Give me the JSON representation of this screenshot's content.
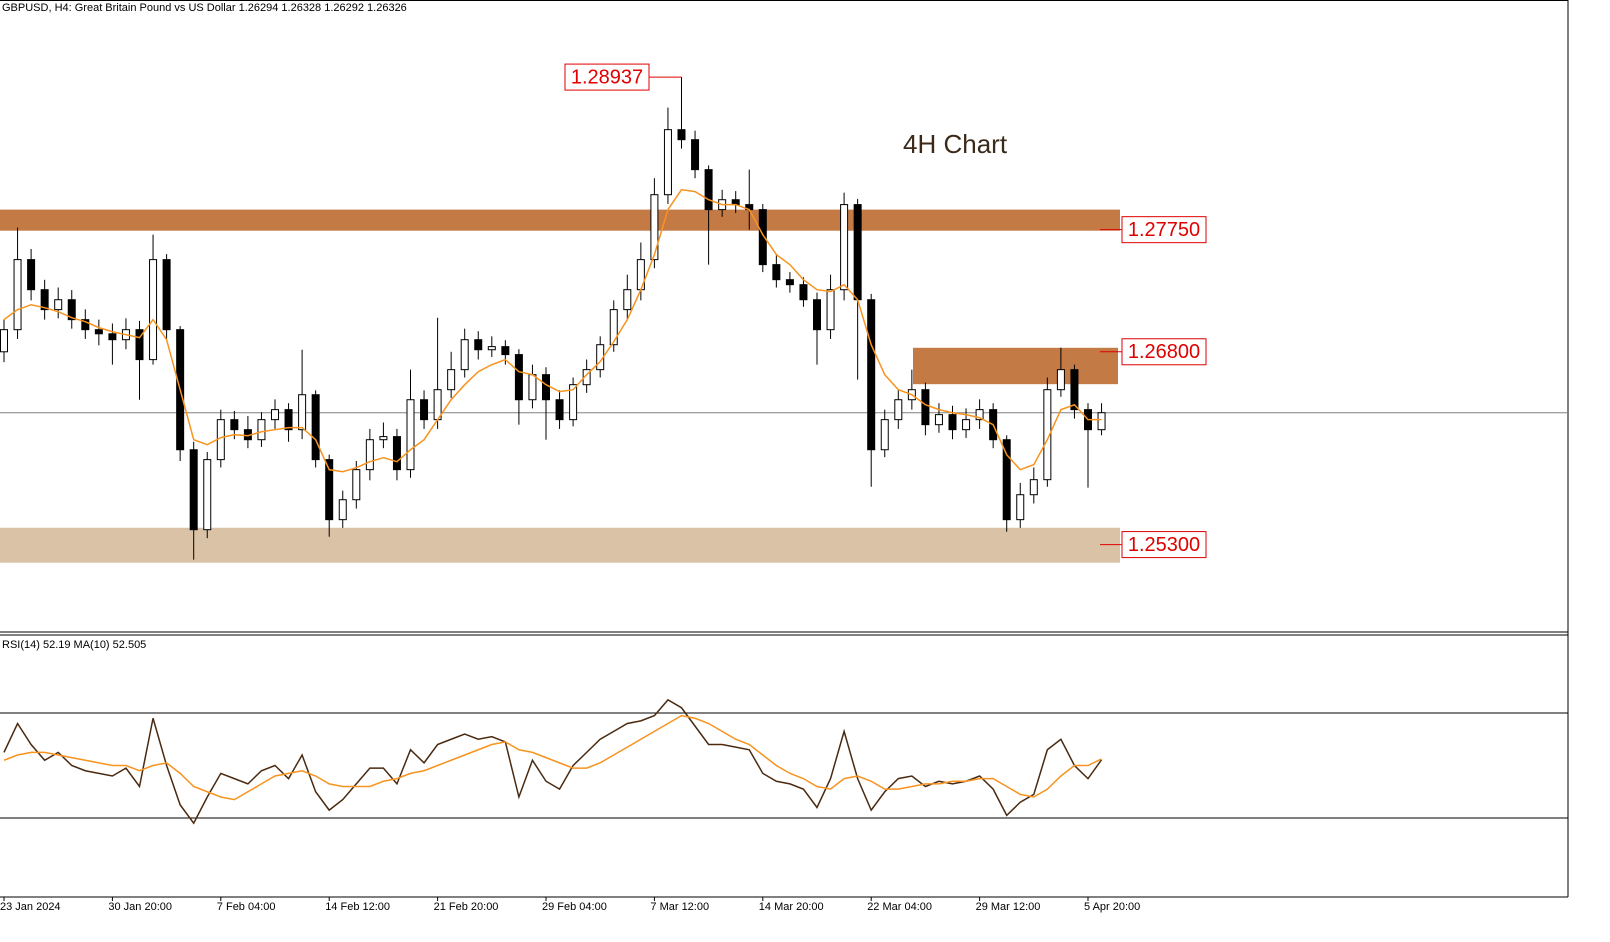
{
  "chart_data": {
    "type": "candlestick",
    "title": "GBPUSD, H4:  Great Britain Pound vs US Dollar  1.26294 1.26328 1.26292 1.26326",
    "annotation": "4H Chart",
    "categories": [
      "23 Jan 2024",
      null,
      null,
      null,
      null,
      null,
      null,
      null,
      "30 Jan 20:00",
      null,
      null,
      null,
      null,
      null,
      null,
      null,
      "7 Feb 04:00",
      null,
      null,
      null,
      null,
      null,
      null,
      null,
      "14 Feb 12:00",
      null,
      null,
      null,
      null,
      null,
      null,
      null,
      "21 Feb 20:00",
      null,
      null,
      null,
      null,
      null,
      null,
      null,
      "29 Feb 04:00",
      null,
      null,
      null,
      null,
      null,
      null,
      null,
      "7 Mar 12:00",
      null,
      null,
      null,
      null,
      null,
      null,
      null,
      "14 Mar 20:00",
      null,
      null,
      null,
      null,
      null,
      null,
      null,
      "22 Mar 04:00",
      null,
      null,
      null,
      null,
      null,
      null,
      null,
      "29 Mar 12:00",
      null,
      null,
      null,
      null,
      null,
      null,
      null,
      "5 Apr 20:00",
      null
    ],
    "open": [
      1.268,
      1.26972,
      1.27517,
      1.27283,
      1.27128,
      1.27205,
      1.2705,
      1.26972,
      1.2694,
      1.26894,
      1.26972,
      1.26739,
      1.27517,
      1.26972,
      1.26038,
      1.25416,
      1.25961,
      1.26272,
      1.26194,
      1.26116,
      1.26272,
      1.2635,
      1.26194,
      1.26466,
      1.25961,
      1.25494,
      1.25649,
      1.25883,
      1.26116,
      1.2614,
      1.25883,
      1.26427,
      1.26272,
      1.26505,
      1.26661,
      1.26894,
      1.26816,
      1.2684,
      1.26778,
      1.26427,
      1.26622,
      1.26427,
      1.26272,
      1.26544,
      1.26661,
      1.26855,
      1.27128,
      1.27283,
      1.27517,
      1.28022,
      1.28528,
      1.2845,
      1.28217,
      1.27906,
      1.27983,
      1.27945,
      1.27906,
      1.27478,
      1.27361,
      1.27322,
      1.27205,
      1.26972,
      1.27283,
      1.27945,
      1.27205,
      1.26038,
      1.26272,
      1.26427,
      1.26505,
      1.26233,
      1.26311,
      1.26194,
      1.26272,
      1.2635,
      1.26116,
      1.25494,
      1.25688,
      1.25805,
      1.26505,
      1.26661,
      1.2635,
      1.26194
    ],
    "high": [
      1.2705,
      1.27766,
      1.276,
      1.2736,
      1.273,
      1.2728,
      1.2713,
      1.2705,
      1.2702,
      1.2706,
      1.2704,
      1.27711,
      1.2756,
      1.27,
      1.261,
      1.2602,
      1.2635,
      1.2634,
      1.263,
      1.2633,
      1.2643,
      1.264,
      1.26816,
      1.265,
      1.26,
      1.2572,
      1.2595,
      1.262,
      1.2625,
      1.262,
      1.26661,
      1.265,
      1.27065,
      1.268,
      1.2698,
      1.2696,
      1.2692,
      1.2689,
      1.2682,
      1.267,
      1.2668,
      1.265,
      1.266,
      1.2674,
      1.2692,
      1.272,
      1.274,
      1.2765,
      1.2815,
      1.287,
      1.28937,
      1.2852,
      1.2825,
      1.2806,
      1.2805,
      1.28217,
      1.2795,
      1.2755,
      1.2742,
      1.2738,
      1.2726,
      1.274,
      1.28038,
      1.2799,
      1.2725,
      1.2635,
      1.265,
      1.26661,
      1.2656,
      1.264,
      1.2638,
      1.2636,
      1.2643,
      1.264,
      1.2615,
      1.2578,
      1.259,
      1.266,
      1.26832,
      1.267,
      1.264,
      1.264
    ],
    "low": [
      1.2672,
      1.269,
      1.272,
      1.2705,
      1.2706,
      1.2698,
      1.269,
      1.2685,
      1.267,
      1.2682,
      1.26427,
      1.267,
      1.269,
      1.2595,
      1.25183,
      1.2535,
      1.259,
      1.2612,
      1.2605,
      1.2606,
      1.262,
      1.261,
      1.2612,
      1.259,
      1.25361,
      1.2543,
      1.2558,
      1.258,
      1.2605,
      1.258,
      1.2582,
      1.262,
      1.262,
      1.2644,
      1.266,
      1.2674,
      1.2676,
      1.267,
      1.26233,
      1.2636,
      1.26116,
      1.262,
      1.2622,
      1.2648,
      1.266,
      1.268,
      1.2705,
      1.272,
      1.2745,
      1.2795,
      1.2838,
      1.2815,
      1.27478,
      1.2785,
      1.2788,
      1.2775,
      1.2742,
      1.273,
      1.2726,
      1.2715,
      1.267,
      1.269,
      1.272,
      1.26583,
      1.2575,
      1.2598,
      1.262,
      1.2635,
      1.2615,
      1.2617,
      1.2612,
      1.2613,
      1.262,
      1.2605,
      1.254,
      1.2543,
      1.2562,
      1.2575,
      1.2645,
      1.2628,
      1.25743,
      1.2615
    ],
    "close": [
      1.26972,
      1.27517,
      1.27283,
      1.27128,
      1.27205,
      1.2705,
      1.26972,
      1.2694,
      1.26894,
      1.26972,
      1.26739,
      1.27517,
      1.26972,
      1.26038,
      1.25416,
      1.25961,
      1.26272,
      1.26194,
      1.26116,
      1.26272,
      1.2635,
      1.26194,
      1.26466,
      1.25961,
      1.25494,
      1.25649,
      1.25883,
      1.26116,
      1.2614,
      1.25883,
      1.26427,
      1.26272,
      1.26505,
      1.26661,
      1.26894,
      1.26816,
      1.2684,
      1.26778,
      1.26427,
      1.26622,
      1.26427,
      1.26272,
      1.26544,
      1.26661,
      1.26855,
      1.27128,
      1.27283,
      1.27517,
      1.28022,
      1.28528,
      1.2845,
      1.28217,
      1.27906,
      1.27983,
      1.27945,
      1.27906,
      1.27478,
      1.27361,
      1.27322,
      1.27205,
      1.26972,
      1.27283,
      1.27945,
      1.27205,
      1.26038,
      1.26272,
      1.26427,
      1.26505,
      1.26233,
      1.26311,
      1.26194,
      1.26272,
      1.2635,
      1.26116,
      1.25494,
      1.25688,
      1.25805,
      1.26505,
      1.26661,
      1.2635,
      1.26194,
      1.26326
    ],
    "ylim": [
      1.2462,
      1.2942
    ],
    "bull_color": "#ffffff",
    "bear_color": "#000000",
    "price_line_color": "#808080",
    "ma": {
      "color": "#f7931e",
      "values": [
        1.2705,
        1.27128,
        1.27166,
        1.27143,
        1.27112,
        1.27065,
        1.27034,
        1.26988,
        1.26956,
        1.26933,
        1.2691,
        1.2705,
        1.26894,
        1.26505,
        1.26116,
        1.26077,
        1.26132,
        1.26155,
        1.26147,
        1.26178,
        1.26194,
        1.2621,
        1.2621,
        1.26116,
        1.25883,
        1.25867,
        1.25898,
        1.25945,
        1.25976,
        1.25945,
        1.26038,
        1.26116,
        1.26272,
        1.26427,
        1.26544,
        1.26645,
        1.267,
        1.26739,
        1.26645,
        1.26622,
        1.26544,
        1.2649,
        1.26505,
        1.26622,
        1.26723,
        1.26879,
        1.2705,
        1.27283,
        1.27556,
        1.27906,
        1.28061,
        1.28046,
        1.27983,
        1.27945,
        1.27945,
        1.27906,
        1.27711,
        1.27556,
        1.27478,
        1.27361,
        1.27283,
        1.27268,
        1.27322,
        1.27205,
        1.26855,
        1.26622,
        1.26505,
        1.26466,
        1.26388,
        1.2635,
        1.26326,
        1.26311,
        1.26287,
        1.26233,
        1.25999,
        1.25883,
        1.25922,
        1.26116,
        1.2635,
        1.26388,
        1.26272,
        1.26272
      ]
    },
    "levels": [
      1.28937,
      {
        "value": 1.2775,
        "label": "1.27750"
      },
      {
        "value": 1.268,
        "label": "1.26800"
      },
      {
        "value": 1.253,
        "label": "1.25300"
      }
    ],
    "level_color": "#e00000",
    "zones": [
      {
        "from": 1.27742,
        "to": 1.27906,
        "color": "#c47a45"
      },
      {
        "from": 1.26548,
        "to": 1.26831,
        "color": "#c47a45"
      },
      {
        "from": 1.25159,
        "to": 1.25431,
        "color": "#d9c2a6"
      }
    ],
    "indicator": {
      "type": "line",
      "label": "RSI(14) 52.19 MA(10) 52.505",
      "ylim": [
        0,
        100
      ],
      "levels": [
        30,
        70
      ],
      "series": [
        {
          "color": "#4a2a10",
          "values": [
            55,
            66,
            58,
            52,
            55,
            50,
            48,
            47,
            46,
            49,
            42,
            68,
            50,
            35,
            28,
            38,
            47,
            45,
            43,
            48,
            50,
            45,
            54,
            40,
            33,
            37,
            43,
            49,
            49,
            43,
            56,
            51,
            58,
            60,
            62,
            60,
            61,
            59,
            38,
            52,
            44,
            41,
            50,
            55,
            60,
            63,
            66,
            67,
            69,
            75,
            72,
            65,
            58,
            58,
            57,
            56,
            47,
            44,
            43,
            41,
            34,
            45,
            63,
            45,
            33,
            40,
            45,
            46,
            42,
            44,
            43,
            44,
            46,
            41,
            31,
            36,
            39,
            56,
            60,
            50,
            45,
            52.19
          ]
        },
        {
          "color": "#f7931e",
          "values": [
            52,
            54,
            55,
            55,
            54,
            53,
            52,
            51,
            50,
            50,
            48,
            50,
            51,
            47,
            42,
            40,
            38,
            37,
            40,
            43,
            46,
            47,
            48,
            46,
            43,
            42,
            42,
            42,
            44,
            45,
            47,
            48,
            50,
            52,
            54,
            56,
            58,
            59,
            56,
            55,
            53,
            51,
            49,
            49,
            51,
            54,
            57,
            60,
            63,
            66,
            69,
            68,
            66,
            63,
            60,
            58,
            54,
            50,
            47,
            45,
            42,
            41,
            45,
            46,
            44,
            41,
            41,
            42,
            43,
            43,
            44,
            44,
            45,
            45,
            42,
            39,
            38,
            41,
            46,
            50,
            50,
            52.505
          ]
        }
      ]
    }
  }
}
